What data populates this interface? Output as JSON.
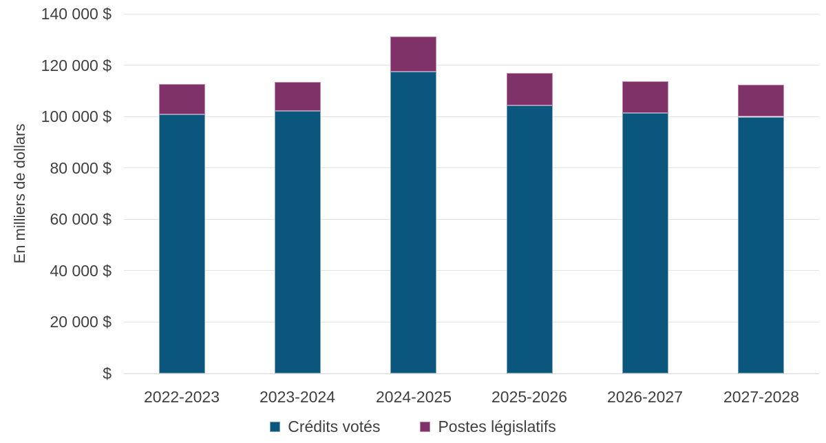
{
  "chart_data": {
    "type": "bar",
    "stacked": true,
    "title": "",
    "xlabel": "",
    "ylabel": "En milliers de dollars",
    "categories": [
      "2022-2023",
      "2023-2024",
      "2024-2025",
      "2025-2026",
      "2026-2027",
      "2027-2028"
    ],
    "series": [
      {
        "name": "Crédits votés",
        "color": "#0A567D",
        "border_color": "#7EA6BD",
        "values": [
          100800,
          102100,
          117400,
          104300,
          101400,
          99900
        ]
      },
      {
        "name": "Postes législatifs",
        "color": "#7F3267",
        "border_color": "#C888AE",
        "values": [
          11800,
          11300,
          13700,
          12600,
          12300,
          12400
        ]
      }
    ],
    "totals": [
      112600,
      113400,
      131100,
      116900,
      113700,
      112300
    ],
    "ylim": [
      0,
      140000
    ],
    "ytick_step": 20000,
    "ytick_labels": [
      "$",
      "20 000 $",
      "40 000 $",
      "60 000 $",
      "80 000 $",
      "100 000 $",
      "120 000 $",
      "140 000 $"
    ],
    "grid": true,
    "legend_position": "bottom",
    "style": {
      "background": "#FFFFFF",
      "grid_color": "#E2E2E2",
      "axis_line_color": "#D9D9D9",
      "text_color": "#404040"
    }
  }
}
